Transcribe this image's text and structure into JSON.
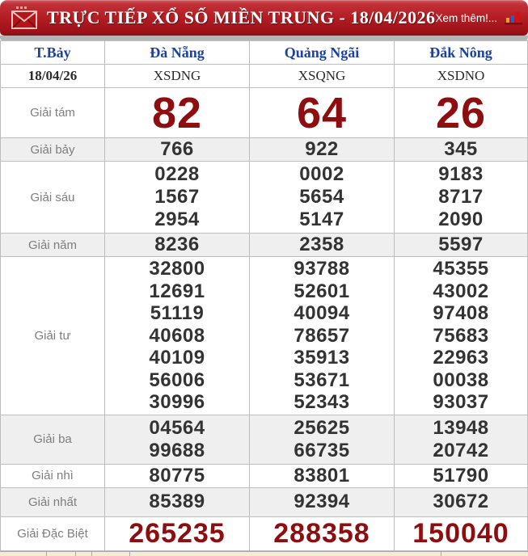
{
  "header": {
    "title": "TRỰC TIẾP XỔ SỐ MIỀN TRUNG - 18/04/2026",
    "more_link": "Xem thêm!..."
  },
  "table": {
    "columns": [
      "T.Bảy",
      "Đà Nẵng",
      "Quảng Ngãi",
      "Đắk Nông"
    ],
    "date_row": [
      "18/04/26",
      "XSDNG",
      "XSQNG",
      "XSDNO"
    ],
    "rows": [
      {
        "label": "Giải tám",
        "style": "eighth",
        "shaded": false,
        "values": [
          [
            "82"
          ],
          [
            "64"
          ],
          [
            "26"
          ]
        ]
      },
      {
        "label": "Giải bảy",
        "style": "normal",
        "shaded": true,
        "values": [
          [
            "766"
          ],
          [
            "922"
          ],
          [
            "345"
          ]
        ]
      },
      {
        "label": "Giải sáu",
        "style": "normal",
        "shaded": false,
        "values": [
          [
            "0228",
            "1567",
            "2954"
          ],
          [
            "0002",
            "5654",
            "5147"
          ],
          [
            "9183",
            "8717",
            "2090"
          ]
        ]
      },
      {
        "label": "Giải năm",
        "style": "normal",
        "shaded": true,
        "values": [
          [
            "8236"
          ],
          [
            "2358"
          ],
          [
            "5597"
          ]
        ]
      },
      {
        "label": "Giải tư",
        "style": "normal",
        "shaded": false,
        "values": [
          [
            "32800",
            "12691",
            "51119",
            "40608",
            "40109",
            "56006",
            "30996"
          ],
          [
            "93788",
            "52601",
            "40094",
            "78657",
            "35913",
            "53671",
            "52343"
          ],
          [
            "45355",
            "43002",
            "97408",
            "75683",
            "22963",
            "00038",
            "93037"
          ]
        ]
      },
      {
        "label": "Giải ba",
        "style": "normal",
        "shaded": true,
        "values": [
          [
            "04564",
            "99688"
          ],
          [
            "25625",
            "66735"
          ],
          [
            "13948",
            "20742"
          ]
        ]
      },
      {
        "label": "Giải nhì",
        "style": "normal",
        "shaded": false,
        "values": [
          [
            "80775"
          ],
          [
            "83801"
          ],
          [
            "51790"
          ]
        ]
      },
      {
        "label": "Giải nhất",
        "style": "normal",
        "shaded": true,
        "values": [
          [
            "85389"
          ],
          [
            "92394"
          ],
          [
            "30672"
          ]
        ]
      },
      {
        "label": "Giải Đặc Biệt",
        "style": "special",
        "shaded": false,
        "values": [
          [
            "265235"
          ],
          [
            "288358"
          ],
          [
            "150040"
          ]
        ]
      }
    ]
  },
  "colors": {
    "header_red": "#b41d24",
    "prize_maroon": "#8e0e10",
    "link_blue": "#1b41a5",
    "number_dark": "#333333",
    "shaded_row": "#efefef",
    "strip_cream": "#f3edd5"
  }
}
